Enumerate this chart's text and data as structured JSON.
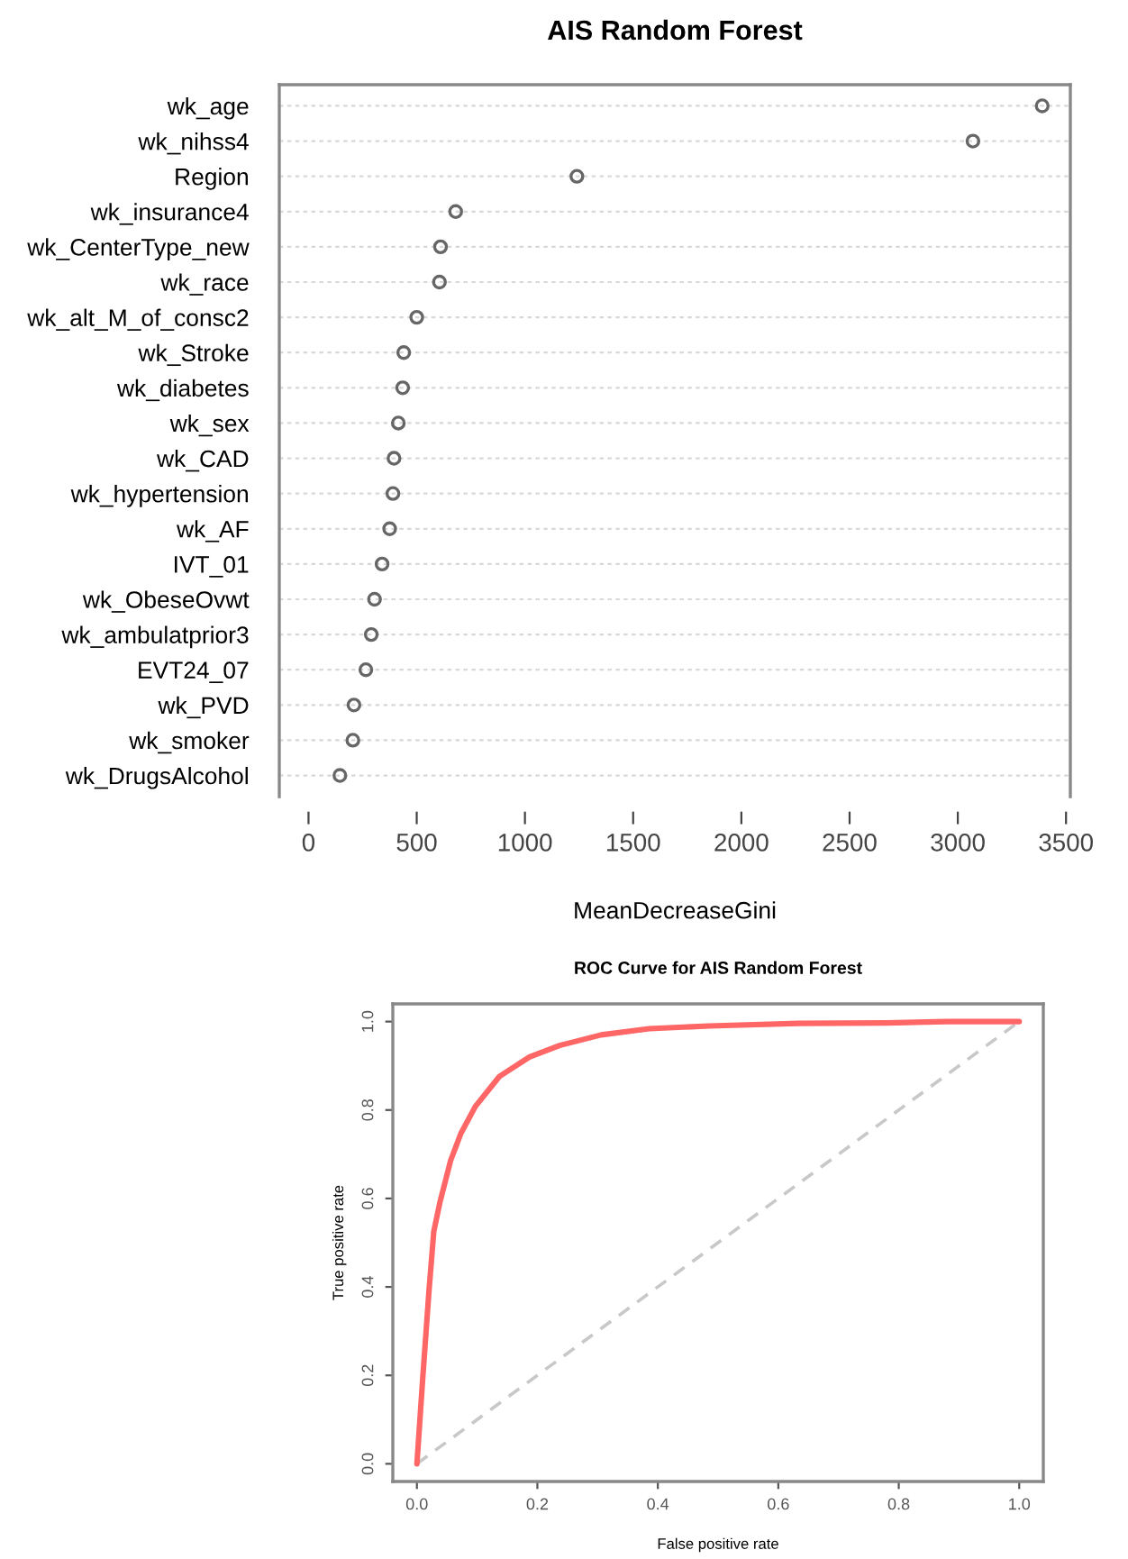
{
  "chart_data": [
    {
      "type": "scatter",
      "orientation": "horizontal",
      "title": "AIS Random Forest",
      "xlabel": "MeanDecreaseGini",
      "categories": [
        "wk_age",
        "wk_nihss4",
        "Region",
        "wk_insurance4",
        "wk_CenterType_new",
        "wk_race",
        "wk_alt_M_of_consc2",
        "wk_Stroke",
        "wk_diabetes",
        "wk_sex",
        "wk_CAD",
        "wk_hypertension",
        "wk_AF",
        "IVT_01",
        "wk_ObeseOvwt",
        "wk_ambulatprior3",
        "EVT24_07",
        "wk_PVD",
        "wk_smoker",
        "wk_DrugsAlcohol"
      ],
      "values": [
        3390,
        3070,
        1240,
        680,
        610,
        605,
        500,
        440,
        435,
        415,
        395,
        390,
        375,
        340,
        305,
        290,
        265,
        210,
        205,
        145
      ],
      "color": "#666666",
      "marker": "circle",
      "grid": "y",
      "xlim": [
        -135,
        3520
      ],
      "xticks": [
        0,
        500,
        1000,
        1500,
        2000,
        2500,
        3000,
        3500
      ]
    },
    {
      "type": "line",
      "title": "ROC Curve for AIS Random Forest",
      "xlabel": "False positive rate",
      "ylabel": "True positive rate",
      "series": [
        {
          "color": "#ff6666",
          "line_style": "solid",
          "x": [
            0,
            0.01,
            0.02,
            0.028,
            0.038,
            0.056,
            0.073,
            0.097,
            0.137,
            0.187,
            0.237,
            0.306,
            0.386,
            0.485,
            0.634,
            0.78,
            0.88,
            1.0
          ],
          "values": [
            0,
            0.2,
            0.39,
            0.525,
            0.59,
            0.686,
            0.747,
            0.808,
            0.876,
            0.92,
            0.946,
            0.97,
            0.984,
            0.99,
            0.996,
            0.997,
            1.0,
            1.0
          ]
        },
        {
          "color": "#c8c8c8",
          "line_style": "dashed",
          "x": [
            0,
            1
          ],
          "values": [
            0,
            1
          ]
        }
      ],
      "xlim": [
        -0.04,
        1.04
      ],
      "ylim": [
        -0.04,
        1.04
      ],
      "xticks": [
        {
          "value": 0,
          "label": "0.0"
        },
        {
          "value": 0.2,
          "label": "0.2"
        },
        {
          "value": 0.4,
          "label": "0.4"
        },
        {
          "value": 0.6,
          "label": "0.6"
        },
        {
          "value": 0.8,
          "label": "0.8"
        },
        {
          "value": 1,
          "label": "1.0"
        }
      ],
      "yticks": [
        {
          "value": 0,
          "label": "0.0"
        },
        {
          "value": 0.2,
          "label": "0.2"
        },
        {
          "value": 0.4,
          "label": "0.4"
        },
        {
          "value": 0.6,
          "label": "0.6"
        },
        {
          "value": 0.8,
          "label": "0.8"
        },
        {
          "value": 1,
          "label": "1.0"
        }
      ]
    }
  ]
}
